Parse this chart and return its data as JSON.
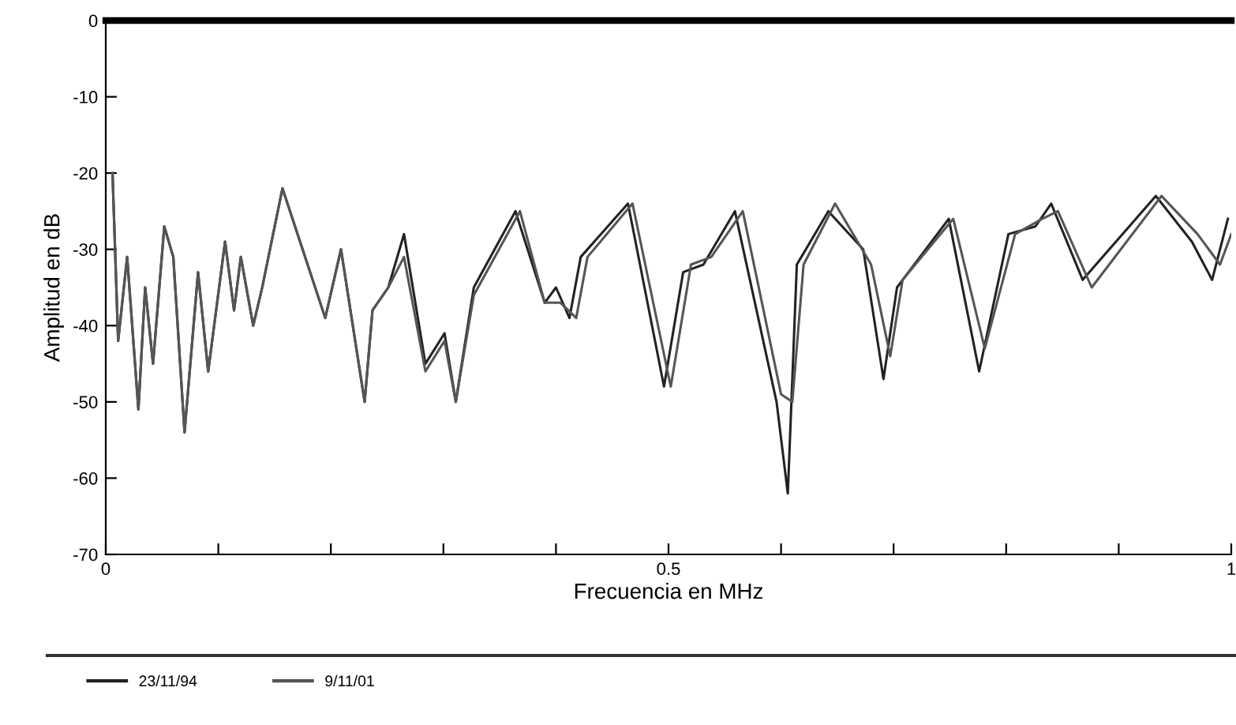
{
  "chart_data": {
    "type": "line",
    "xlabel": "Frecuencia en MHz",
    "ylabel": "Amplitud en dB",
    "xlim": [
      0,
      1
    ],
    "ylim": [
      -70,
      0
    ],
    "xticks": [
      0,
      {
        "value": 0.1,
        "label": null
      },
      {
        "value": 0.2,
        "label": null
      },
      {
        "value": 0.3,
        "label": null
      },
      {
        "value": 0.4,
        "label": null
      },
      0.5,
      {
        "value": 0.6,
        "label": null
      },
      {
        "value": 0.7,
        "label": null
      },
      {
        "value": 0.8,
        "label": null
      },
      {
        "value": 0.9,
        "label": null
      },
      1
    ],
    "yticks": [
      0,
      -10,
      -20,
      -30,
      -40,
      -50,
      -60,
      -70
    ],
    "grid": false,
    "legend": "bottom",
    "marker": "none",
    "line_style": "solid",
    "series": [
      {
        "name": "23/11/94",
        "color": "#222222",
        "x": [
          0.006,
          0.011,
          0.019,
          0.029,
          0.035,
          0.042,
          0.052,
          0.06,
          0.07,
          0.082,
          0.091,
          0.106,
          0.114,
          0.12,
          0.131,
          0.139,
          0.157,
          0.195,
          0.209,
          0.23,
          0.237,
          0.251,
          0.265,
          0.284,
          0.301,
          0.311,
          0.327,
          0.364,
          0.39,
          0.4,
          0.412,
          0.422,
          0.464,
          0.496,
          0.513,
          0.531,
          0.559,
          0.596,
          0.606,
          0.614,
          0.642,
          0.673,
          0.691,
          0.703,
          0.749,
          0.776,
          0.802,
          0.826,
          0.84,
          0.868,
          0.933,
          0.965,
          0.983,
          0.997
        ],
        "values": [
          -20,
          -42,
          -31,
          -51,
          -35,
          -45,
          -27,
          -31,
          -54,
          -33,
          -46,
          -29,
          -38,
          -31,
          -40,
          -35,
          -22,
          -39,
          -30,
          -50,
          -38,
          -35,
          -28,
          -45,
          -41,
          -50,
          -35,
          -25,
          -37,
          -35,
          -39,
          -31,
          -24,
          -48,
          -33,
          -32,
          -25,
          -50,
          -62,
          -32,
          -25,
          -30,
          -47,
          -35,
          -26,
          -46,
          -28,
          -27,
          -24,
          -34,
          -23,
          -29,
          -34,
          -26
        ]
      },
      {
        "name": "9/11/01",
        "color": "#555555",
        "x": [
          0.006,
          0.011,
          0.019,
          0.029,
          0.035,
          0.042,
          0.052,
          0.06,
          0.07,
          0.082,
          0.091,
          0.106,
          0.114,
          0.12,
          0.131,
          0.139,
          0.157,
          0.195,
          0.209,
          0.23,
          0.237,
          0.251,
          0.265,
          0.284,
          0.301,
          0.311,
          0.327,
          0.368,
          0.39,
          0.404,
          0.418,
          0.428,
          0.468,
          0.502,
          0.52,
          0.538,
          0.566,
          0.6,
          0.61,
          0.62,
          0.648,
          0.68,
          0.697,
          0.708,
          0.753,
          0.781,
          0.808,
          0.832,
          0.846,
          0.876,
          0.938,
          0.97,
          0.99,
          1.0
        ],
        "values": [
          -20,
          -42,
          -31,
          -51,
          -35,
          -45,
          -27,
          -31,
          -54,
          -33,
          -46,
          -29,
          -38,
          -31,
          -40,
          -35,
          -22,
          -39,
          -30,
          -50,
          -38,
          -35,
          -31,
          -46,
          -42,
          -50,
          -36,
          -25,
          -37,
          -37,
          -39,
          -31,
          -24,
          -48,
          -32,
          -31,
          -25,
          -49,
          -50,
          -32,
          -24,
          -32,
          -44,
          -34,
          -26,
          -43,
          -28,
          -26,
          -25,
          -35,
          -23,
          -28,
          -32,
          -28
        ]
      }
    ]
  }
}
